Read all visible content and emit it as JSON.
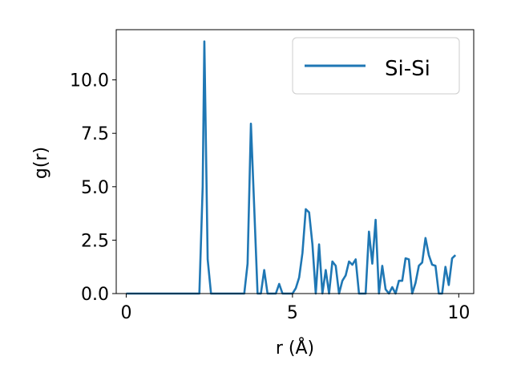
{
  "chart_data": {
    "type": "line",
    "xlabel": "r (Å)",
    "ylabel": "g(r)",
    "xlim": [
      -0.3,
      10.45
    ],
    "ylim": [
      0,
      12.35
    ],
    "xticks": [
      {
        "value": 0,
        "label": "0"
      },
      {
        "value": 5,
        "label": "5"
      },
      {
        "value": 10,
        "label": "10"
      }
    ],
    "yticks": [
      {
        "value": 0,
        "label": "0.0"
      },
      {
        "value": 2.5,
        "label": "2.5"
      },
      {
        "value": 5,
        "label": "5.0"
      },
      {
        "value": 7.5,
        "label": "7.5"
      },
      {
        "value": 10,
        "label": "10.0"
      }
    ],
    "grid": false,
    "legend_position": "top-right",
    "series": [
      {
        "name": "Si-Si",
        "color": "#1f77b4",
        "x": [
          0.0,
          2.2,
          2.3,
          2.35,
          2.45,
          2.55,
          3.55,
          3.65,
          3.75,
          3.85,
          3.95,
          4.05,
          4.15,
          4.25,
          4.5,
          4.6,
          4.7,
          5.0,
          5.1,
          5.2,
          5.3,
          5.4,
          5.5,
          5.6,
          5.7,
          5.8,
          5.9,
          6.0,
          6.1,
          6.2,
          6.3,
          6.4,
          6.5,
          6.6,
          6.7,
          6.8,
          6.9,
          7.0,
          7.1,
          7.2,
          7.3,
          7.4,
          7.5,
          7.6,
          7.7,
          7.8,
          7.9,
          8.0,
          8.1,
          8.2,
          8.3,
          8.4,
          8.5,
          8.6,
          8.7,
          8.8,
          8.9,
          9.0,
          9.1,
          9.2,
          9.3,
          9.4,
          9.5,
          9.6,
          9.7,
          9.8,
          9.9
        ],
        "y": [
          0.0,
          0.0,
          5.0,
          11.8,
          1.6,
          0.0,
          0.0,
          1.4,
          7.95,
          4.0,
          0.0,
          0.0,
          1.1,
          0.0,
          0.0,
          0.45,
          0.0,
          0.0,
          0.25,
          0.75,
          1.9,
          3.95,
          3.8,
          2.3,
          0.0,
          2.3,
          0.0,
          1.1,
          0.0,
          1.5,
          1.3,
          0.0,
          0.6,
          0.85,
          1.5,
          1.35,
          1.6,
          0.0,
          0.0,
          0.0,
          2.9,
          1.4,
          3.45,
          0.0,
          1.3,
          0.2,
          0.0,
          0.3,
          0.0,
          0.6,
          0.6,
          1.65,
          1.6,
          0.0,
          0.5,
          1.3,
          1.45,
          2.6,
          1.8,
          1.35,
          1.3,
          0.0,
          0.0,
          1.25,
          0.4,
          1.65,
          1.8
        ]
      }
    ]
  }
}
